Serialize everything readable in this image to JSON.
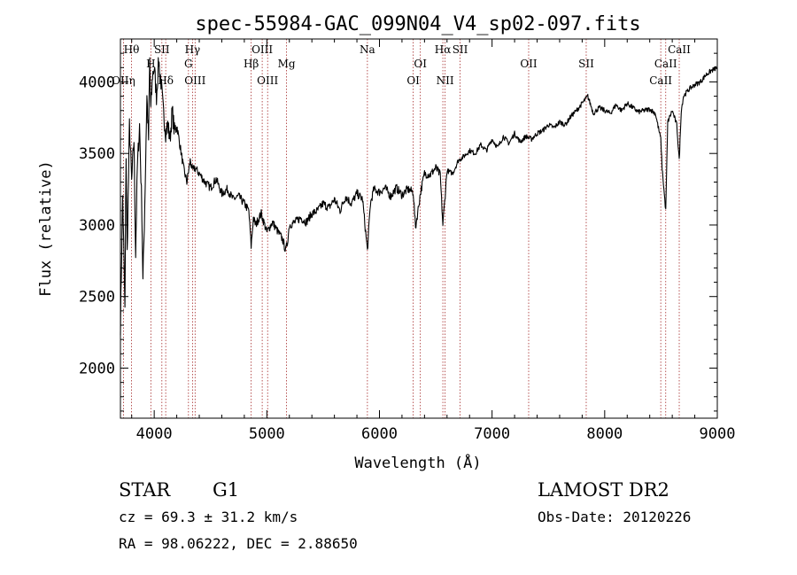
{
  "chart_data": {
    "type": "line",
    "title": "spec-55984-GAC_099N04_V4_sp02-097.fits",
    "xlabel": "Wavelength (Å)",
    "ylabel": "Flux (relative)",
    "xlim": [
      3700,
      9000
    ],
    "ylim": [
      1650,
      4300
    ],
    "xticks": [
      4000,
      5000,
      6000,
      7000,
      8000,
      9000
    ],
    "yticks": [
      2000,
      2500,
      3000,
      3500,
      4000
    ],
    "xtick_labels": [
      "4000",
      "5000",
      "6000",
      "7000",
      "8000",
      "9000"
    ],
    "ytick_labels": [
      "2000",
      "2500",
      "3000",
      "3500",
      "4000"
    ],
    "grid": false,
    "series": [
      {
        "x": [
          3700,
          3720,
          3740,
          3750,
          3760,
          3780,
          3800,
          3820,
          3835,
          3850,
          3870,
          3890,
          3900,
          3920,
          3935,
          3950,
          3960,
          3970,
          3985,
          4000,
          4020,
          4040,
          4060,
          4080,
          4102,
          4120,
          4140,
          4160,
          4180,
          4200,
          4230,
          4260,
          4290,
          4320,
          4340,
          4360,
          4400,
          4450,
          4500,
          4550,
          4600,
          4650,
          4700,
          4750,
          4800,
          4840,
          4861,
          4880,
          4900,
          4950,
          5000,
          5050,
          5100,
          5140,
          5167,
          5183,
          5200,
          5250,
          5300,
          5350,
          5400,
          5450,
          5500,
          5550,
          5600,
          5650,
          5700,
          5750,
          5800,
          5850,
          5893,
          5920,
          5950,
          6000,
          6050,
          6100,
          6150,
          6200,
          6250,
          6300,
          6320,
          6363,
          6400,
          6450,
          6500,
          6540,
          6563,
          6600,
          6650,
          6700,
          6750,
          6800,
          6850,
          6900,
          6950,
          7000,
          7050,
          7100,
          7150,
          7200,
          7250,
          7300,
          7350,
          7400,
          7450,
          7500,
          7550,
          7600,
          7650,
          7700,
          7750,
          7800,
          7850,
          7900,
          7950,
          8000,
          8050,
          8100,
          8150,
          8200,
          8250,
          8300,
          8350,
          8400,
          8450,
          8498,
          8510,
          8542,
          8560,
          8600,
          8640,
          8662,
          8680,
          8700,
          8750,
          8800,
          8850,
          8900,
          8950,
          9000
        ],
        "y": [
          2300,
          3200,
          2400,
          3500,
          2800,
          3700,
          3300,
          3600,
          2800,
          3400,
          3700,
          3100,
          2600,
          3300,
          3900,
          3600,
          4150,
          3800,
          4050,
          4100,
          3900,
          4150,
          4000,
          3800,
          3650,
          3700,
          3600,
          3800,
          3650,
          3700,
          3550,
          3400,
          3300,
          3450,
          3380,
          3400,
          3360,
          3300,
          3260,
          3320,
          3220,
          3250,
          3180,
          3200,
          3150,
          3100,
          2850,
          3050,
          3000,
          3080,
          2950,
          3020,
          2950,
          2900,
          2820,
          2880,
          3000,
          3020,
          3050,
          3020,
          3080,
          3100,
          3150,
          3120,
          3180,
          3100,
          3200,
          3150,
          3220,
          3180,
          2820,
          3150,
          3250,
          3230,
          3260,
          3200,
          3260,
          3210,
          3250,
          3230,
          2980,
          3220,
          3360,
          3350,
          3400,
          3350,
          3000,
          3380,
          3360,
          3450,
          3480,
          3520,
          3500,
          3560,
          3520,
          3600,
          3540,
          3620,
          3570,
          3640,
          3580,
          3620,
          3600,
          3640,
          3660,
          3700,
          3680,
          3720,
          3700,
          3760,
          3800,
          3850,
          3900,
          3780,
          3820,
          3800,
          3780,
          3840,
          3800,
          3850,
          3820,
          3790,
          3800,
          3810,
          3780,
          3600,
          3400,
          3100,
          3720,
          3800,
          3700,
          3450,
          3800,
          3900,
          3950,
          3980,
          4000,
          4050,
          4080,
          4100
        ]
      }
    ],
    "lines": [
      {
        "name": "Hθ",
        "x": 3798,
        "row": 1
      },
      {
        "name": "OIIη",
        "x": 3727,
        "row": 3
      },
      {
        "name": "H",
        "x": 3970,
        "row": 2
      },
      {
        "name": "SII",
        "x": 4068,
        "row": 1
      },
      {
        "name": "Hδ",
        "x": 4102,
        "row": 3
      },
      {
        "name": "Hγ",
        "x": 4340,
        "row": 1
      },
      {
        "name": "G",
        "x": 4304,
        "row": 2
      },
      {
        "name": "OIII",
        "x": 4363,
        "row": 3
      },
      {
        "name": "Hβ",
        "x": 4861,
        "row": 2
      },
      {
        "name": "OIII",
        "x": 4959,
        "row": 1
      },
      {
        "name": "OIII",
        "x": 5007,
        "row": 3
      },
      {
        "name": "Mg",
        "x": 5175,
        "row": 2
      },
      {
        "name": "Na",
        "x": 5893,
        "row": 1
      },
      {
        "name": "OI",
        "x": 6300,
        "row": 3
      },
      {
        "name": "OI",
        "x": 6363,
        "row": 2
      },
      {
        "name": "Hα",
        "x": 6563,
        "row": 1
      },
      {
        "name": "NII",
        "x": 6583,
        "row": 3
      },
      {
        "name": "SII",
        "x": 6716,
        "row": 1
      },
      {
        "name": "OII",
        "x": 7325,
        "row": 2
      },
      {
        "name": "SII",
        "x": 7836,
        "row": 2
      },
      {
        "name": "CaII",
        "x": 8498,
        "row": 3
      },
      {
        "name": "CaII",
        "x": 8542,
        "row": 2
      },
      {
        "name": "CaII",
        "x": 8662,
        "row": 1
      }
    ]
  },
  "info": {
    "object_type": "STAR",
    "subclass": "G1",
    "survey": "LAMOST DR2",
    "cz": "cz = 69.3 ± 31.2 km/s",
    "obs_date": "Obs-Date: 20120226",
    "coords": "RA =  98.06222, DEC =   2.88650"
  }
}
